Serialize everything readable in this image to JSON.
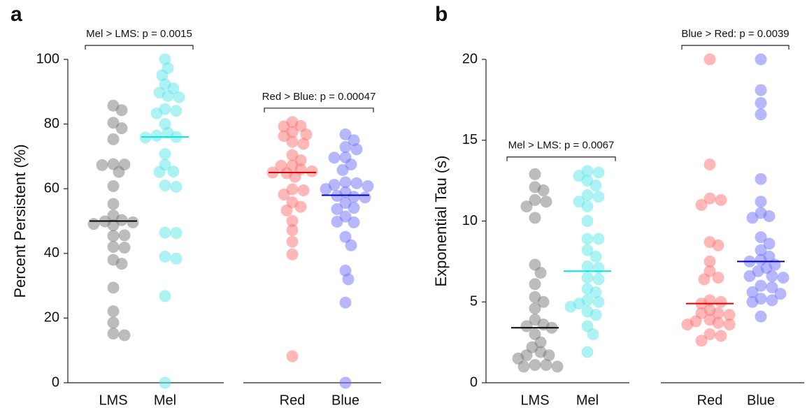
{
  "chart_data": [
    {
      "type": "strip",
      "label": "a",
      "ylabel": "Percent Persistent (%)",
      "ylim": [
        0,
        100
      ],
      "yticks": [
        0,
        20,
        40,
        60,
        80,
        100
      ],
      "groups": [
        {
          "annotation": "Mel > LMS:  p = 0.0015",
          "series": [
            {
              "name": "LMS",
              "color": "#7a7a7a",
              "median_color": "#000000",
              "median": 50,
              "values": [
                85.7,
                84.3,
                80.4,
                78.7,
                75.3,
                67.6,
                67.5,
                67.3,
                65.2,
                60.8,
                55.3,
                51.7,
                50.3,
                49.9,
                49.6,
                49.1,
                48.7,
                45.4,
                45.6,
                42.0,
                41.8,
                38.0,
                36.8,
                29.4,
                22.1,
                18.6,
                15.2,
                14.7
              ]
            },
            {
              "name": "Mel",
              "color": "#5ee8e8",
              "median_color": "#00e5e5",
              "median": 76,
              "values": [
                100,
                97.3,
                95.1,
                92.3,
                91.0,
                89.7,
                88.7,
                88.3,
                84.6,
                84.1,
                83.3,
                80.0,
                77.3,
                76.4,
                76.0,
                75.8,
                70.7,
                67.4,
                65.3,
                65.2,
                61.0,
                60.6,
                46.4,
                46.3,
                39.0,
                38.4,
                26.8,
                0
              ]
            }
          ]
        },
        {
          "annotation": "Red > Blue: p = 0.00047",
          "series": [
            {
              "name": "Red",
              "color": "#ff7070",
              "median_color": "#e00000",
              "median": 65,
              "values": [
                80.6,
                79.4,
                79.3,
                77.5,
                76.8,
                76.3,
                74.5,
                73.9,
                70.4,
                68.8,
                67.2,
                67.1,
                66.0,
                65.4,
                65.0,
                64.8,
                63.7,
                59.8,
                59.5,
                58.2,
                55.8,
                54.4,
                53.3,
                50.0,
                47.2,
                43.6,
                39.7,
                8.2
              ]
            },
            {
              "name": "Blue",
              "color": "#7070ff",
              "median_color": "#0000c8",
              "median": 58,
              "values": [
                76.8,
                75.0,
                72.9,
                72.2,
                69.7,
                69.6,
                67.5,
                65.8,
                62.0,
                61.7,
                61.2,
                60.8,
                59.9,
                58.9,
                57.5,
                57.8,
                57.3,
                55.6,
                54.1,
                53.7,
                51.4,
                49.6,
                49.8,
                45.1,
                42.5,
                34.7,
                32.0,
                24.8,
                0
              ]
            }
          ]
        }
      ]
    },
    {
      "type": "strip",
      "label": "b",
      "ylabel": "Exponential Tau (s)",
      "ylim": [
        0,
        20
      ],
      "yticks": [
        0,
        5,
        10,
        15,
        20
      ],
      "groups": [
        {
          "annotation": "Mel > LMS:  p = 0.0067",
          "series": [
            {
              "name": "LMS",
              "color": "#7a7a7a",
              "median_color": "#000000",
              "median": 3.4,
              "values": [
                12.9,
                12.1,
                11.9,
                11.3,
                11.2,
                10.9,
                10.2,
                7.3,
                6.8,
                6.1,
                5.3,
                5.0,
                4.6,
                3.9,
                3.6,
                3.5,
                3.4,
                3.0,
                2.5,
                2.2,
                1.9,
                1.7,
                1.7,
                1.5,
                1.1,
                1.1,
                1.0,
                1.0
              ]
            },
            {
              "name": "Mel",
              "color": "#5ee8e8",
              "median_color": "#00e5e5",
              "median": 6.9,
              "values": [
                13.1,
                13.0,
                12.8,
                12.5,
                12.2,
                11.6,
                11.5,
                11.2,
                10.9,
                10.0,
                8.9,
                8.9,
                8.2,
                7.8,
                7.2,
                7.1,
                6.5,
                6.4,
                5.8,
                5.6,
                5.1,
                5.0,
                4.9,
                4.7,
                4.4,
                4.2,
                3.5,
                3.0,
                1.9
              ]
            }
          ]
        },
        {
          "annotation": "Blue > Red: p = 0.0039",
          "series": [
            {
              "name": "Red",
              "color": "#ff7070",
              "median_color": "#e00000",
              "median": 4.9,
              "values": [
                20.0,
                13.5,
                11.4,
                11.3,
                11.0,
                8.7,
                8.5,
                7.5,
                6.9,
                6.5,
                6.4,
                5.1,
                5.0,
                4.9,
                4.5,
                4.3,
                4.3,
                4.2,
                3.9,
                3.8,
                3.7,
                3.6,
                3.6,
                3.0,
                2.9,
                2.6
              ]
            },
            {
              "name": "Blue",
              "color": "#7070ff",
              "median_color": "#0000c8",
              "median": 7.5,
              "values": [
                20.0,
                18.1,
                17.3,
                16.6,
                12.6,
                11.2,
                10.5,
                10.3,
                10.2,
                9.0,
                8.6,
                8.2,
                7.8,
                7.6,
                7.5,
                7.3,
                7.1,
                6.9,
                6.6,
                6.6,
                6.5,
                6.0,
                5.9,
                5.6,
                5.5,
                5.2,
                5.1,
                5.0,
                4.1
              ]
            }
          ]
        }
      ]
    }
  ]
}
